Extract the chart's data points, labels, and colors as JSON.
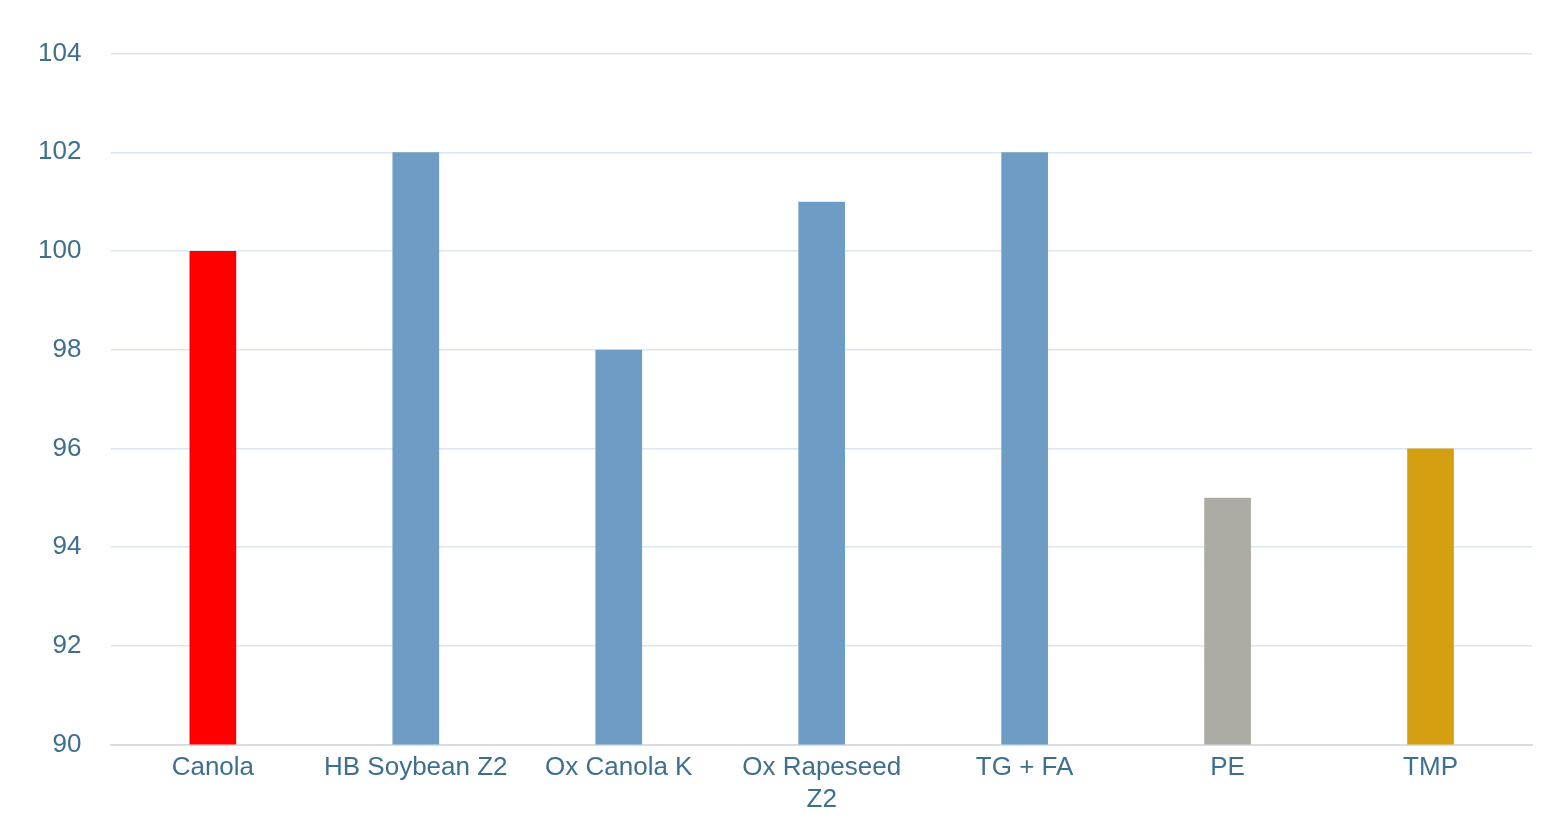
{
  "chart_data": {
    "type": "bar",
    "categories": [
      "Canola",
      "HB Soybean Z2",
      "Ox Canola K",
      "Ox Rapeseed Z2",
      "TG + FA",
      "PE",
      "TMP"
    ],
    "values": [
      100,
      102,
      98,
      101,
      102,
      95,
      96
    ],
    "colors": [
      "#ff0000",
      "#6f9cc4",
      "#6f9cc4",
      "#6f9cc4",
      "#6f9cc4",
      "#acaca4",
      "#d4a012"
    ],
    "ylim": [
      90,
      104
    ],
    "yticks": [
      90,
      92,
      94,
      96,
      98,
      100,
      102,
      104
    ],
    "grid": "y",
    "legend": false
  }
}
